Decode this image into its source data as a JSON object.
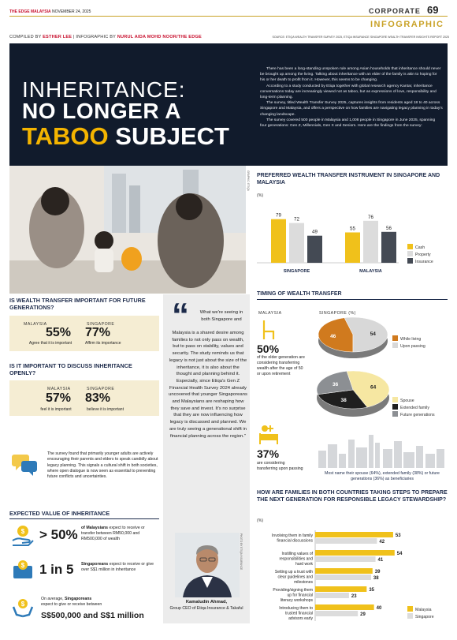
{
  "header": {
    "masthead": "THE EDGE MALAYSIA",
    "date": "NOVEMBER 24, 2025",
    "section": "CORPORATE",
    "page_number": "69",
    "tag": "INFOGRAPHIC"
  },
  "credits": {
    "compiled_label": "COMPILED BY",
    "compiler": "ESTHER LEE",
    "infographic_label": "INFOGRAPHIC BY",
    "designer": "NURUL AIDA MOHD NOOR/THE EDGE",
    "source": "SOURCE: ETIQA WEALTH TRANSFER SURVEY 2025, ETIQA INSURANCE SINGAPORE WEALTH TRANSFER INSIGHTS REPORT 2025"
  },
  "hero": {
    "title_line1": "INHERITANCE:",
    "title_line2": "NO LONGER A",
    "title_highlight": "TABOO",
    "title_line3_rest": "SUBJECT",
    "intro": [
      "There has been a long-standing unspoken rule among Asian households that inheritance should never be brought up among the living. Talking about inheritance with an elder of the family is akin to hoping for his or her death to profit from it. However, this seems to be changing.",
      "According to a study conducted by Etiqa together with global research agency Kantar, inheritance conversations today are increasingly viewed not as taboo, but as expressions of love, responsibility and long-term planning.",
      "The survey, titled Wealth Transfer Survey 2025, captures insights from residents aged 18 to 40 across Singapore and Malaysia, and offers a perspective on how families are navigating legacy planning in today's changing landscape.",
      "The survey covered 500 people in Malaysia and 1,008 people in Singapore in June 2025, spanning four generations: Gen Z, Millennials, Gen X and Seniors. Here are the findings from the survey:"
    ],
    "illustration_credit": "GRAPHIC: ETIQA"
  },
  "importance": {
    "title": "IS WEALTH TRANSFER IMPORTANT FOR FUTURE GENERATIONS?",
    "malaysia_label": "MALAYSIA",
    "malaysia_value": "55%",
    "malaysia_caption": "Agree that it is important",
    "singapore_label": "SINGAPORE",
    "singapore_value": "77%",
    "singapore_caption": "Affirm its importance"
  },
  "discuss": {
    "title": "IS IT IMPORTANT TO DISCUSS INHERITANCE OPENLY?",
    "malaysia_label": "MALAYSIA",
    "malaysia_value": "57%",
    "malaysia_caption": "feel it is important",
    "singapore_label": "SINGAPORE",
    "singapore_value": "83%",
    "singapore_caption": "believe it is important",
    "note": "The survey found that primarily younger adults are actively encouraging their parents and elders to speak candidly about legacy planning. This signals a cultural shift in both societies, where open dialogue is now seen as essential to preventing future conflicts and uncertainties."
  },
  "expected": {
    "title": "EXPECTED VALUE OF INHERITANCE",
    "item1_value": "> 50%",
    "item1_bold": "of Malaysians",
    "item1_text": "expect to receive or transfer between RM50,000 and RM500,000 of wealth",
    "item2_value": "1 in 5",
    "item2_bold": "Singaporeans",
    "item2_text": "expect to receive or give over S$1 million in inheritance",
    "item3_text": "On average,",
    "item3_bold": "Singaporeans",
    "item3_text2": "expect to give or receive between",
    "item3_value": "S$500,000 and S$1 million"
  },
  "quote": {
    "mark": "“",
    "text_top": "What we're seeing in both Singapore and",
    "text_body": "Malaysia is a shared desire among families to not only pass on wealth, but to pass on stability, values and security. The study reminds us that legacy is not just about the size of the inheritance, it is also about the thought and planning behind it. Especially, since Etiqa's Gen Z Financial Health Survey 2024 already uncovered that younger Singaporeans and Malaysians are reshaping how they save and invest. It's no surprise that they are now influencing how legacy is discussed and planned. We are truly seeing a generational shift in financial planning across the region.\"",
    "photo_credit": "PHOTO BY ETIQA INSURANCE",
    "name": "Kamaludin Ahmad,",
    "role": "Group CEO of Etiqa Insurance & Takaful"
  },
  "chart_data": [
    {
      "type": "bar",
      "title": "PREFERRED WEALTH TRANSFER INSTRUMENT IN SINGAPORE AND MALAYSIA",
      "ylabel": "(%)",
      "categories": [
        "SINGAPORE",
        "MALAYSIA"
      ],
      "series": [
        {
          "name": "Cash",
          "values": [
            79,
            55
          ],
          "color": "#f0c11b"
        },
        {
          "name": "Property",
          "values": [
            72,
            76
          ],
          "color": "#dcdcdc"
        },
        {
          "name": "Insurance",
          "values": [
            49,
            56
          ],
          "color": "#444a54"
        }
      ],
      "ylim": [
        0,
        100
      ]
    },
    {
      "type": "pie",
      "title": "TIMING OF WEALTH TRANSFER",
      "subtitle": "SINGAPORE (%)",
      "series": [
        {
          "name": "While living",
          "value": 46,
          "color": "#d07a1e"
        },
        {
          "name": "Upon passing",
          "value": 54,
          "color": "#d8d8d8"
        }
      ]
    },
    {
      "type": "pie",
      "series": [
        {
          "name": "Spouse",
          "value": 64,
          "color": "#f6e7a2"
        },
        {
          "name": "Extended family",
          "value": 38,
          "color": "#1f1f1f"
        },
        {
          "name": "Future generations",
          "value": 36,
          "color": "#8c8f93"
        }
      ],
      "caption": "Most name their spouse (64%), extended family (38%) or future generations (36%) as beneficiaries"
    },
    {
      "type": "bar",
      "title": "HOW ARE FAMILIES IN BOTH COUNTRIES TAKING STEPS TO PREPARE THE NEXT GENERATION FOR RESPONSIBLE LEGACY STEWARDSHIP?",
      "ylabel": "(%)",
      "categories": [
        "Involving them in family financial discussions",
        "Instilling values of responsibilities and hard work",
        "Setting up a trust with clear guidelines and milestones",
        "Providing/signing them up for financial literacy workshops",
        "Introducing them to trusted financial advisors early"
      ],
      "series": [
        {
          "name": "Malaysia",
          "values": [
            53,
            54,
            39,
            35,
            40
          ],
          "color": "#f0c11b"
        },
        {
          "name": "Singapore",
          "values": [
            42,
            41,
            38,
            23,
            29
          ],
          "color": "#dcdcdc"
        }
      ],
      "xlim": [
        0,
        60
      ]
    }
  ],
  "timing": {
    "malaysia_label": "MALAYSIA",
    "stat1_value": "50%",
    "stat1_text": "of the older generation are considering transferring wealth after the age of 50 or upon retirement",
    "stat2_value": "37%",
    "stat2_text": "are considering transferring upon passing"
  }
}
